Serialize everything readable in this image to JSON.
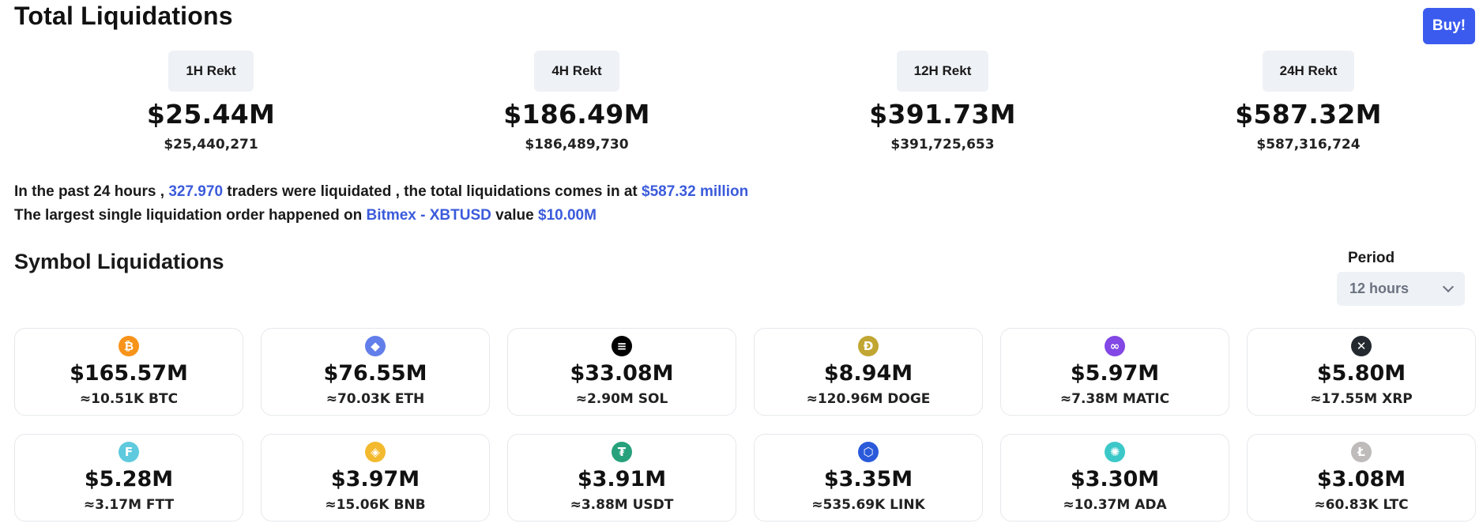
{
  "header": {
    "title": "Total Liquidations",
    "buy_label": "Buy!"
  },
  "rekt": [
    {
      "label": "1H Rekt",
      "value": "$25.44M",
      "exact": "$25,440,271"
    },
    {
      "label": "4H Rekt",
      "value": "$186.49M",
      "exact": "$186,489,730"
    },
    {
      "label": "12H Rekt",
      "value": "$391.73M",
      "exact": "$391,725,653"
    },
    {
      "label": "24H Rekt",
      "value": "$587.32M",
      "exact": "$587,316,724"
    }
  ],
  "summary": {
    "l1_a": "In the past 24 hours , ",
    "traders": "327.970",
    "l1_b": " traders were liquidated , the total liquidations comes in at ",
    "total": "$587.32 million",
    "l2_a": "The largest single liquidation order happened on ",
    "exchange": "Bitmex - XBTUSD",
    "l2_b": " value ",
    "largest": "$10.00M"
  },
  "symbols": {
    "title": "Symbol Liquidations",
    "period_label": "Period",
    "period_value": "12 hours",
    "items": [
      {
        "icon": "bitcoin-icon",
        "glyph": "₿",
        "color": "#f7931a",
        "value": "$165.57M",
        "sub": "≈10.51K BTC"
      },
      {
        "icon": "ethereum-icon",
        "glyph": "◆",
        "color": "#627eea",
        "value": "$76.55M",
        "sub": "≈70.03K ETH"
      },
      {
        "icon": "solana-icon",
        "glyph": "≡",
        "color": "#000000",
        "value": "$33.08M",
        "sub": "≈2.90M SOL"
      },
      {
        "icon": "dogecoin-icon",
        "glyph": "Ð",
        "color": "#c2a633",
        "value": "$8.94M",
        "sub": "≈120.96M DOGE"
      },
      {
        "icon": "polygon-icon",
        "glyph": "∞",
        "color": "#8247e5",
        "value": "$5.97M",
        "sub": "≈7.38M MATIC"
      },
      {
        "icon": "xrp-icon",
        "glyph": "✕",
        "color": "#23292f",
        "value": "$5.80M",
        "sub": "≈17.55M XRP"
      },
      {
        "icon": "ftx-icon",
        "glyph": "F",
        "color": "#5fcade",
        "value": "$5.28M",
        "sub": "≈3.17M FTT"
      },
      {
        "icon": "bnb-icon",
        "glyph": "◈",
        "color": "#f3ba2f",
        "value": "$3.97M",
        "sub": "≈15.06K BNB"
      },
      {
        "icon": "tether-icon",
        "glyph": "₮",
        "color": "#26a17b",
        "value": "$3.91M",
        "sub": "≈3.88M USDT"
      },
      {
        "icon": "chainlink-icon",
        "glyph": "⬡",
        "color": "#2a5ada",
        "value": "$3.35M",
        "sub": "≈535.69K LINK"
      },
      {
        "icon": "cardano-icon",
        "glyph": "✺",
        "color": "#3cc8c8",
        "value": "$3.30M",
        "sub": "≈10.37M ADA"
      },
      {
        "icon": "litecoin-icon",
        "glyph": "Ł",
        "color": "#bfbbbb",
        "value": "$3.08M",
        "sub": "≈60.83K LTC"
      }
    ]
  }
}
